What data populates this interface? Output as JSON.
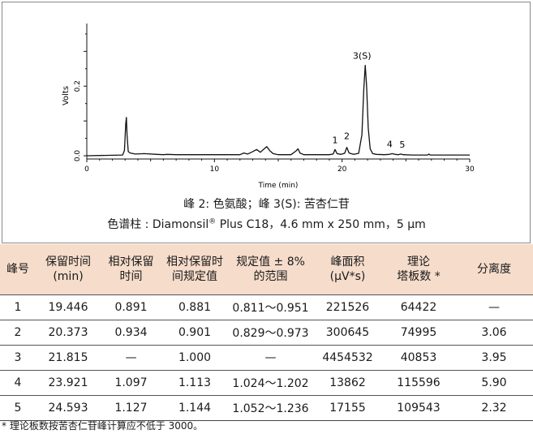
{
  "chart_data": {
    "type": "line",
    "xlabel": "Time (min)",
    "ylabel": "Volts",
    "xlim": [
      0,
      30
    ],
    "ylim": [
      0,
      0.38
    ],
    "xticks": [
      "0",
      "10",
      "20",
      "30"
    ],
    "yticks": [
      "0.0",
      "0.2"
    ],
    "peak_labels": [
      "1",
      "2",
      "3(S)",
      "4",
      "5"
    ],
    "series": [
      {
        "x": [
          0,
          2.8,
          2.95,
          3.05,
          3.1,
          3.15,
          3.25,
          3.4,
          3.8,
          4.5,
          5.5,
          6.0,
          6.3,
          7.0,
          8.0,
          9.0,
          10.0,
          11.0,
          12.0,
          12.3,
          12.6,
          13.0,
          13.3,
          13.6,
          13.9,
          14.1,
          14.35,
          14.6,
          15.0,
          16.0,
          16.4,
          16.55,
          16.7,
          17.0,
          18.0,
          19.0,
          19.3,
          19.446,
          19.6,
          19.9,
          20.2,
          20.373,
          20.55,
          20.9,
          21.3,
          21.55,
          21.7,
          21.815,
          21.92,
          22.05,
          22.2,
          22.4,
          22.7,
          23.3,
          23.7,
          23.921,
          24.15,
          24.4,
          24.593,
          24.8,
          25.5,
          26.7,
          26.8,
          26.9,
          28.0,
          30.0
        ],
        "y": [
          0.0,
          0.002,
          0.015,
          0.092,
          0.11,
          0.06,
          0.012,
          0.008,
          0.005,
          0.006,
          0.004,
          0.003,
          0.004,
          0.003,
          0.003,
          0.003,
          0.003,
          0.003,
          0.003,
          0.008,
          0.005,
          0.012,
          0.018,
          0.01,
          0.02,
          0.026,
          0.014,
          0.006,
          0.003,
          0.003,
          0.014,
          0.02,
          0.008,
          0.003,
          0.003,
          0.003,
          0.005,
          0.018,
          0.006,
          0.004,
          0.007,
          0.024,
          0.008,
          0.004,
          0.007,
          0.06,
          0.19,
          0.26,
          0.2,
          0.08,
          0.02,
          0.006,
          0.004,
          0.003,
          0.004,
          0.006,
          0.004,
          0.003,
          0.005,
          0.003,
          0.002,
          0.002,
          0.005,
          0.002,
          0.002,
          0.002
        ]
      }
    ]
  },
  "caption": {
    "line1": "峰 2: 色氨酸；峰 3(S): 苦杏仁苷",
    "line2_pre": "色谱柱 : Diamonsil",
    "line2_sup": "®",
    "line2_post": " Plus C18，4.6 mm x 250 mm，5 µm"
  },
  "table": {
    "headers": [
      "峰号",
      "保留时间\n(min)",
      "相对保留\n时间",
      "相对保留时\n间规定值",
      "规定值 ± 8%\n的范围",
      "峰面积\n(µV*s)",
      "理论\n塔板数 *",
      "分离度"
    ],
    "rows": [
      [
        "1",
        "19.446",
        "0.891",
        "0.881",
        "0.811～0.951",
        "221526",
        "64422",
        "—"
      ],
      [
        "2",
        "20.373",
        "0.934",
        "0.901",
        "0.829～0.973",
        "300645",
        "74995",
        "3.06"
      ],
      [
        "3",
        "21.815",
        "—",
        "1.000",
        "—",
        "4454532",
        "40853",
        "3.95"
      ],
      [
        "4",
        "23.921",
        "1.097",
        "1.113",
        "1.024～1.202",
        "13862",
        "115596",
        "5.90"
      ],
      [
        "5",
        "24.593",
        "1.127",
        "1.144",
        "1.052～1.236",
        "17155",
        "109543",
        "2.32"
      ]
    ]
  },
  "footnote": "* 理论板数按苦杏仁苷峰计算应不低于 3000。"
}
